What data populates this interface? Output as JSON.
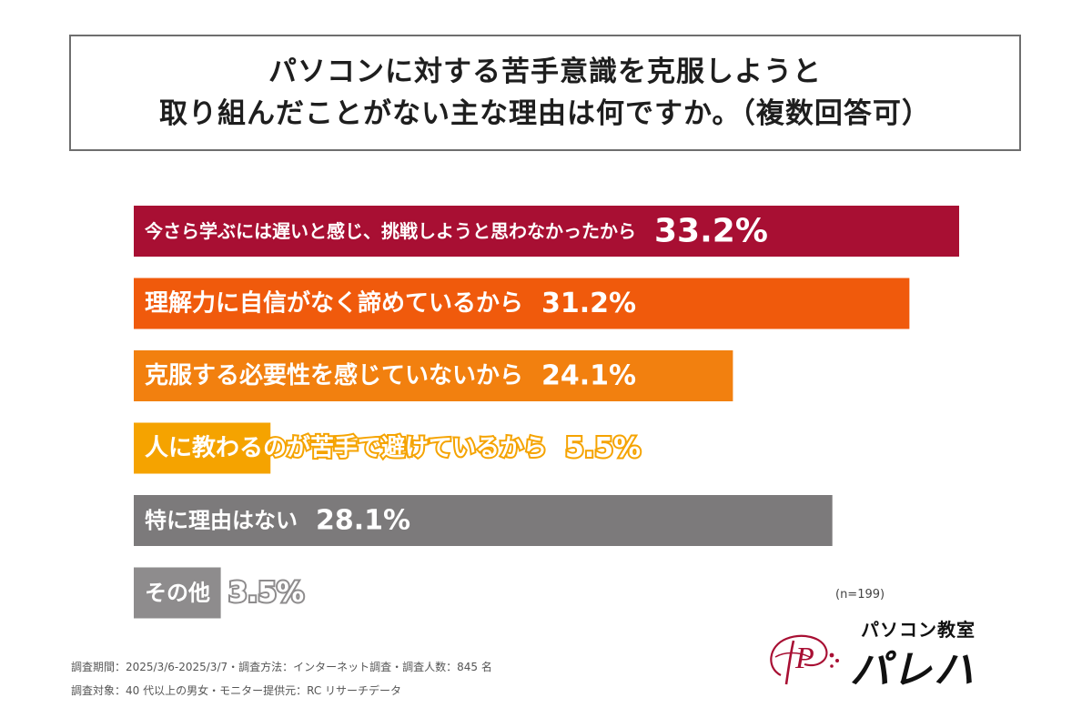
{
  "title": {
    "line1": "パソコンに対する苦手意識を克服しようと",
    "line2": "取り組んだことがない主な理由は何ですか。（複数回答可）"
  },
  "chart_data": {
    "type": "bar",
    "orientation": "horizontal",
    "categories": [
      "今さら学ぶには遅いと感じ、挑戦しようと思わなかったから",
      "理解力に自信がなく諦めているから",
      "克服する必要性を感じていないから",
      "人に教わるのが苦手で避けているから",
      "特に理由はない",
      "その他"
    ],
    "values": [
      33.2,
      31.2,
      24.1,
      5.5,
      28.1,
      3.5
    ],
    "value_labels": [
      "33.2%",
      "31.2%",
      "24.1%",
      "5.5%",
      "28.1%",
      "3.5%"
    ],
    "colors": [
      "#a80f33",
      "#f05a0c",
      "#f2800f",
      "#f5a300",
      "#7c7a7b",
      "#8e8c8d"
    ],
    "xlim": [
      0,
      33.2
    ],
    "grid": false,
    "legend": "none"
  },
  "sample": "(n=199)",
  "footnotes": {
    "line1": "調査期間：2025/3/6-2025/3/7・調査方法：インターネット調査・調査人数：845 名",
    "line2": "調査対象：40 代以上の男女・モニター提供元：RC リサーチデータ"
  },
  "logo": {
    "sub": "パソコン教室",
    "main": "パレハ",
    "mark_text": "P",
    "mark_color": "#a80f33"
  }
}
